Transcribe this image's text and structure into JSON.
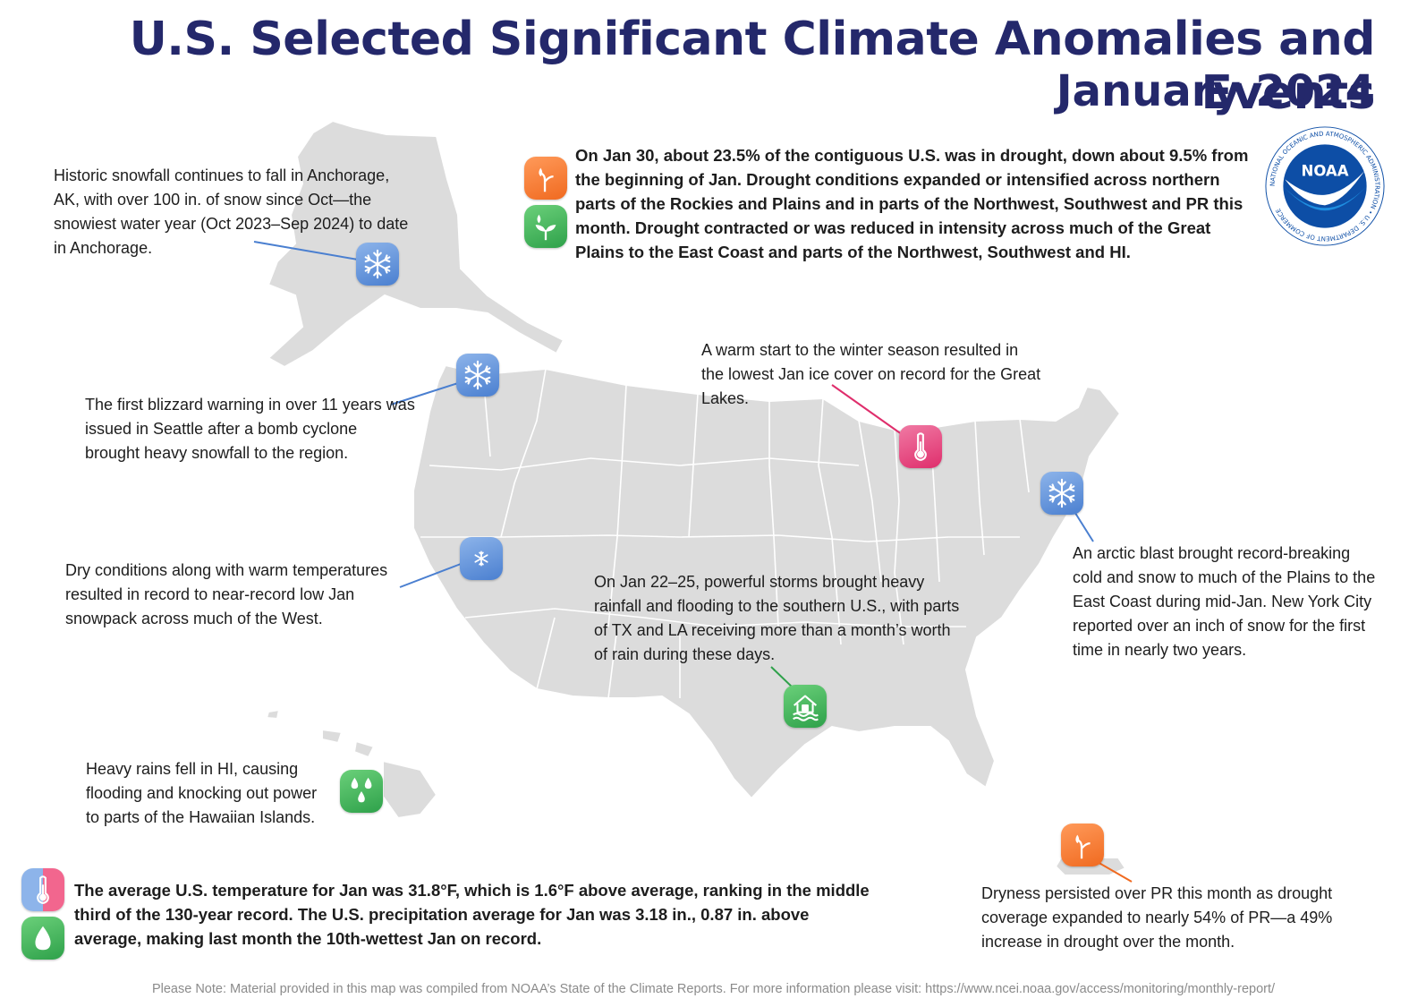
{
  "header": {
    "title": "U.S. Selected Significant Climate Anomalies and Events",
    "subtitle": "January 2024"
  },
  "logo": {
    "name": "NOAA",
    "ring_text": "NATIONAL OCEANIC AND ATMOSPHERIC ADMINISTRATION • U.S. DEPARTMENT OF COMMERCE"
  },
  "annotations": {
    "alaska": "Historic snowfall continues to fall in Anchorage, AK, with over 100 in. of snow since Oct—the snowiest water year (Oct 2023–Sep 2024) to date in Anchorage.",
    "drought": "On Jan 30, about 23.5% of the contiguous U.S. was in drought, down about 9.5% from the beginning of Jan. Drought conditions expanded or intensified across northern parts of the Rockies and Plains and in parts of the Northwest, Southwest and PR this month. Drought contracted or was reduced in intensity across much of the Great Plains to the East Coast and parts of the Northwest, Southwest and HI.",
    "seattle": "The first blizzard warning in over 11 years was issued in Seattle after a bomb cyclone brought heavy snowfall to the region.",
    "great_lakes": "A warm start to the winter season resulted in the lowest Jan ice cover on record for the Great Lakes.",
    "snowpack": "Dry conditions along with warm temperatures resulted in record to near-record low Jan snowpack across much of the West.",
    "storms": "On Jan 22–25, powerful storms brought heavy rainfall and flooding to the southern U.S., with parts of TX and LA receiving more than a month’s worth of rain during these days.",
    "arctic": "An arctic blast brought record-breaking cold and snow to much of the Plains to the East Coast during mid-Jan. New York City reported over an inch of snow for the first time in nearly two years.",
    "hawaii": "Heavy rains fell in HI, causing flooding and knocking out power to parts of the Hawaiian Islands.",
    "national": "The average U.S. temperature for Jan was 31.8°F, which is 1.6°F above average, ranking in the middle third of the 130-year record. The U.S. precipitation average for Jan was 3.18 in., 0.87 in. above average, making last month the 10th-wettest Jan on record.",
    "puerto_rico": "Dryness persisted over PR this month as drought coverage expanded to nearly 54% of PR—a 49% increase in drought over the month."
  },
  "icons": {
    "alaska": "snowflake-icon",
    "seattle": "snowflake-icon",
    "snowpack": "snowflake-icon",
    "arctic": "snowflake-icon",
    "great_lakes": "thermometer-icon",
    "storms": "flooded-house-icon",
    "hawaii": "raindrops-icon",
    "drought_expand": "dry-plant-icon",
    "drought_contract": "sprout-icon",
    "national_temp": "thermometer-icon",
    "national_precip": "water-drop-icon",
    "puerto_rico": "dry-plant-icon"
  },
  "colors": {
    "title": "#24286b",
    "map_fill": "#dcdcdc",
    "cold": "#4a7fd0",
    "warm": "#df2e6c",
    "wet": "#2ea14a",
    "dry": "#f06a20",
    "noaa_blue": "#0d4ea6"
  },
  "footnote": "Please Note: Material provided in this map was compiled from NOAA’s State of the Climate Reports. For more information please visit: https://www.ncei.noaa.gov/access/monitoring/monthly-report/"
}
